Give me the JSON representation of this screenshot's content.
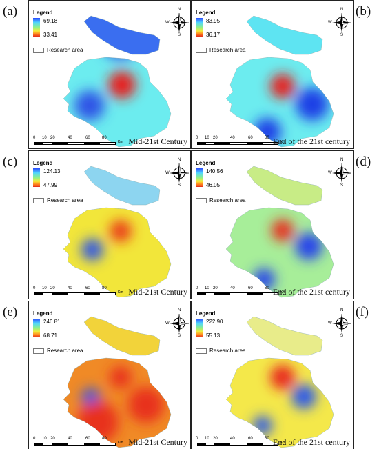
{
  "panels": [
    {
      "label": "(a)",
      "legend": {
        "title": "Legend",
        "max": "69.18",
        "min": "33.41",
        "area_label": "Research area"
      },
      "period": "Mid-21st Century",
      "palette": {
        "north": "#3a6ef0",
        "base": "#6cecef",
        "hotspot": "#e81e1e",
        "coldspot": "#2d55e6"
      }
    },
    {
      "label": "(b)",
      "legend": {
        "title": "Legend",
        "max": "83.95",
        "min": "36.17",
        "area_label": "Research area"
      },
      "period": "End of the 21st century",
      "palette": {
        "north": "#5ee4f2",
        "base": "#6cecef",
        "hotspot": "#e81e1e",
        "coldspot": "#1f3fe6"
      }
    },
    {
      "label": "(c)",
      "legend": {
        "title": "Legend",
        "max": "124.13",
        "min": "47.99",
        "area_label": "Research area"
      },
      "period": "Mid-21st Century",
      "palette": {
        "north": "#8dd5f0",
        "base": "#f2e63a",
        "hotspot": "#ea3a18",
        "coldspot": "#2d55e6"
      }
    },
    {
      "label": "(d)",
      "legend": {
        "title": "Legend",
        "max": "140.56",
        "min": "46.05",
        "area_label": "Research area"
      },
      "period": "End of the 21st century",
      "palette": {
        "north": "#c8ec86",
        "base": "#a7ee99",
        "hotspot": "#e82a1a",
        "coldspot": "#2545ea"
      }
    },
    {
      "label": "(e)",
      "legend": {
        "title": "Legend",
        "max": "246.81",
        "min": "68.71",
        "area_label": "Research area"
      },
      "period": "Mid-21st Century",
      "palette": {
        "north": "#f2d33a",
        "base": "#f08a26",
        "hotspot": "#e8301a",
        "coldspot": "#2d55e6"
      }
    },
    {
      "label": "(f)",
      "legend": {
        "title": "Legend",
        "max": "222.90",
        "min": "55.13",
        "area_label": "Research area"
      },
      "period": "End of the 21st century",
      "palette": {
        "north": "#e8ec8a",
        "base": "#f4e84a",
        "hotspot": "#e8281a",
        "coldspot": "#2a58ea"
      }
    }
  ],
  "compass": {
    "n": "N",
    "s": "S",
    "e": "E",
    "w": "W"
  },
  "scale": {
    "ticks": [
      "0",
      "10",
      "20",
      "40",
      "60",
      "80"
    ],
    "unit": "Km"
  }
}
